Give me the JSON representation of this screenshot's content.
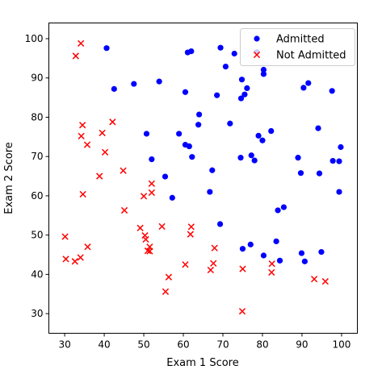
{
  "chart_data": {
    "type": "scatter",
    "title": "",
    "xlabel": "Exam 1 Score",
    "ylabel": "Exam 2 Score",
    "xlim": [
      26,
      104
    ],
    "ylim": [
      25,
      104
    ],
    "xticks": [
      30,
      40,
      50,
      60,
      70,
      80,
      90,
      100
    ],
    "yticks": [
      30,
      40,
      50,
      60,
      70,
      80,
      90,
      100
    ],
    "grid": false,
    "legend_position": "top-right",
    "series": [
      {
        "name": "Admitted",
        "marker": "circle",
        "color": "#0000ff",
        "points": [
          [
            40.6,
            97.6
          ],
          [
            42.5,
            87.2
          ],
          [
            47.5,
            88.5
          ],
          [
            53.9,
            89.1
          ],
          [
            60.5,
            86.4
          ],
          [
            61.1,
            96.5
          ],
          [
            62.0,
            96.8
          ],
          [
            64.0,
            80.7
          ],
          [
            63.8,
            78.1
          ],
          [
            58.9,
            75.8
          ],
          [
            50.7,
            75.8
          ],
          [
            60.5,
            73.0
          ],
          [
            61.5,
            72.6
          ],
          [
            52.0,
            69.3
          ],
          [
            62.2,
            69.9
          ],
          [
            55.4,
            64.9
          ],
          [
            57.2,
            59.5
          ],
          [
            67.3,
            66.5
          ],
          [
            66.7,
            61.0
          ],
          [
            69.3,
            52.8
          ],
          [
            69.4,
            97.7
          ],
          [
            70.7,
            92.9
          ],
          [
            72.9,
            96.2
          ],
          [
            68.5,
            85.6
          ],
          [
            74.8,
            89.6
          ],
          [
            74.6,
            84.8
          ],
          [
            75.5,
            85.8
          ],
          [
            76.1,
            87.4
          ],
          [
            71.8,
            78.4
          ],
          [
            78.6,
            96.6
          ],
          [
            80.3,
            92.1
          ],
          [
            80.3,
            91.0
          ],
          [
            79.0,
            75.3
          ],
          [
            80.0,
            74.1
          ],
          [
            82.2,
            76.5
          ],
          [
            74.5,
            69.7
          ],
          [
            77.2,
            70.3
          ],
          [
            78.0,
            69.0
          ],
          [
            89.0,
            69.7
          ],
          [
            89.7,
            65.8
          ],
          [
            94.4,
            65.7
          ],
          [
            90.4,
            87.5
          ],
          [
            91.6,
            88.7
          ],
          [
            97.6,
            86.7
          ],
          [
            94.1,
            77.2
          ],
          [
            99.8,
            72.4
          ],
          [
            97.8,
            68.9
          ],
          [
            99.4,
            68.8
          ],
          [
            99.4,
            61.0
          ],
          [
            83.9,
            56.3
          ],
          [
            85.4,
            57.1
          ],
          [
            83.5,
            48.4
          ],
          [
            80.3,
            44.8
          ],
          [
            77.0,
            47.6
          ],
          [
            75.0,
            46.5
          ],
          [
            84.4,
            43.5
          ],
          [
            89.9,
            45.4
          ],
          [
            90.7,
            43.3
          ],
          [
            94.9,
            45.7
          ]
        ]
      },
      {
        "name": "Not Admitted",
        "marker": "x",
        "color": "#ff0000",
        "points": [
          [
            34.1,
            98.8
          ],
          [
            32.8,
            95.6
          ],
          [
            34.5,
            78.0
          ],
          [
            35.7,
            73.0
          ],
          [
            34.2,
            75.2
          ],
          [
            42.1,
            78.8
          ],
          [
            39.5,
            76.0
          ],
          [
            40.2,
            71.1
          ],
          [
            38.8,
            65.0
          ],
          [
            44.8,
            66.4
          ],
          [
            34.6,
            60.4
          ],
          [
            45.1,
            56.3
          ],
          [
            52.0,
            60.8
          ],
          [
            52.0,
            63.1
          ],
          [
            50.0,
            59.9
          ],
          [
            30.1,
            49.6
          ],
          [
            49.1,
            51.8
          ],
          [
            50.3,
            49.9
          ],
          [
            50.5,
            48.9
          ],
          [
            51.5,
            47.0
          ],
          [
            51.0,
            46.0
          ],
          [
            51.5,
            45.9
          ],
          [
            54.6,
            52.2
          ],
          [
            62.0,
            52.1
          ],
          [
            61.8,
            50.2
          ],
          [
            35.8,
            47.0
          ],
          [
            30.3,
            43.9
          ],
          [
            34.0,
            44.3
          ],
          [
            32.6,
            43.3
          ],
          [
            56.3,
            39.3
          ],
          [
            55.5,
            35.6
          ],
          [
            60.5,
            42.5
          ],
          [
            67.9,
            46.7
          ],
          [
            67.6,
            42.8
          ],
          [
            66.9,
            41.1
          ],
          [
            75.0,
            41.4
          ],
          [
            74.9,
            30.6
          ],
          [
            82.4,
            42.7
          ],
          [
            82.3,
            40.5
          ],
          [
            93.1,
            38.8
          ],
          [
            95.9,
            38.2
          ]
        ]
      }
    ]
  }
}
